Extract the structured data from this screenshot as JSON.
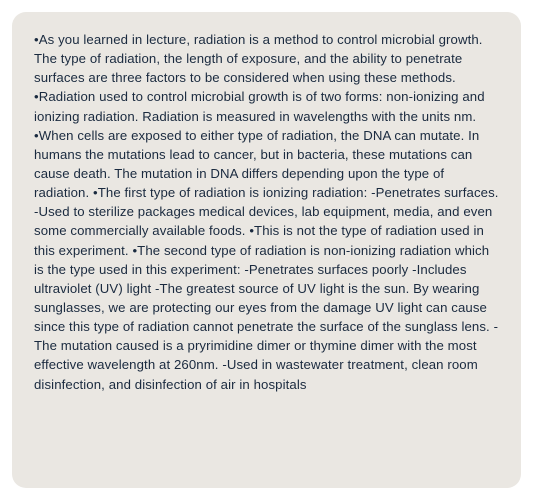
{
  "document": {
    "text": "•As you learned in lecture, radiation is a method to control microbial growth. The type of radiation, the length of exposure, and the ability to penetrate surfaces are three factors to be considered when using these methods. •Radiation used to control microbial growth is of two forms: non-ionizing and ionizing radiation. Radiation is measured in wavelengths with the units nm. •When cells are exposed to either type of radiation, the DNA can mutate. In humans the mutations lead to cancer, but in bacteria, these mutations can cause death. The mutation in DNA differs depending upon the type of radiation. •The first type of radiation is ionizing radiation: -Penetrates surfaces. -Used to sterilize packages medical devices, lab equipment, media, and even some commercially available foods. •This is not the type of radiation used in this experiment. •The second type of radiation is non-ionizing radiation which is the type used in this experiment: -Penetrates surfaces poorly -Includes ultraviolet (UV) light -The greatest source of UV light is the sun. By wearing sunglasses, we are protecting our eyes from the damage UV light can cause since this type of radiation cannot penetrate the surface of the sunglass lens. -The mutation caused is a pryrimidine dimer or thymine dimer with the most effective wavelength at 260nm. -Used in wastewater treatment, clean room disinfection, and disinfection of air in hospitals",
    "background_color": "#eae7e2",
    "text_color": "#1a2a3f",
    "font_family": "Verdana, Geneva, sans-serif",
    "font_size": 13.2,
    "line_height": 1.45,
    "border_radius": 14
  }
}
